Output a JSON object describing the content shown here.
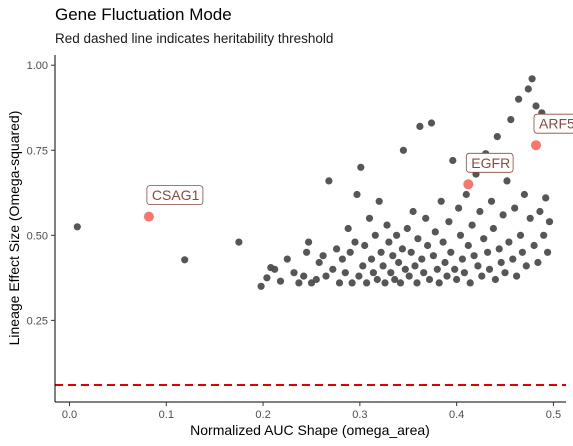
{
  "chart_data": {
    "type": "scatter",
    "title": "Gene Fluctuation Mode",
    "subtitle": "Red dashed line indicates heritability threshold",
    "xlabel": "Normalized AUC Shape (omega_area)",
    "ylabel": "Lineage Effect Size (Omega-squared)",
    "xlim": [
      -0.015,
      0.513
    ],
    "ylim": [
      0.01,
      1.03
    ],
    "x_ticks": [
      {
        "value": 0.0,
        "label": "0.0"
      },
      {
        "value": 0.1,
        "label": "0.1"
      },
      {
        "value": 0.2,
        "label": "0.2"
      },
      {
        "value": 0.3,
        "label": "0.3"
      },
      {
        "value": 0.4,
        "label": "0.4"
      },
      {
        "value": 0.5,
        "label": "0.5"
      }
    ],
    "y_ticks": [
      {
        "value": 0.25,
        "label": "0.25"
      },
      {
        "value": 0.5,
        "label": "0.50"
      },
      {
        "value": 0.75,
        "label": "0.75"
      },
      {
        "value": 1.0,
        "label": "1.00"
      }
    ],
    "threshold_y": 0.06,
    "grid": false,
    "colors": {
      "points": "#4d4d4d",
      "highlight": "#f8766d",
      "threshold": "#e00000",
      "label_text": "#8b4a3a",
      "label_border": "#8b4a3a"
    },
    "highlighted": [
      {
        "gene": "CSAG1",
        "x": 0.082,
        "y": 0.555
      },
      {
        "gene": "EGFR",
        "x": 0.412,
        "y": 0.65
      },
      {
        "gene": "ARF5",
        "x": 0.482,
        "y": 0.765
      }
    ],
    "points": [
      [
        0.008,
        0.525
      ],
      [
        0.119,
        0.428
      ],
      [
        0.175,
        0.48
      ],
      [
        0.198,
        0.35
      ],
      [
        0.204,
        0.375
      ],
      [
        0.208,
        0.405
      ],
      [
        0.212,
        0.4
      ],
      [
        0.218,
        0.365
      ],
      [
        0.225,
        0.43
      ],
      [
        0.232,
        0.39
      ],
      [
        0.237,
        0.36
      ],
      [
        0.242,
        0.38
      ],
      [
        0.245,
        0.45
      ],
      [
        0.247,
        0.48
      ],
      [
        0.25,
        0.36
      ],
      [
        0.255,
        0.37
      ],
      [
        0.258,
        0.42
      ],
      [
        0.262,
        0.44
      ],
      [
        0.265,
        0.38
      ],
      [
        0.268,
        0.66
      ],
      [
        0.272,
        0.4
      ],
      [
        0.276,
        0.46
      ],
      [
        0.279,
        0.36
      ],
      [
        0.282,
        0.43
      ],
      [
        0.285,
        0.39
      ],
      [
        0.288,
        0.52
      ],
      [
        0.29,
        0.45
      ],
      [
        0.292,
        0.36
      ],
      [
        0.295,
        0.48
      ],
      [
        0.297,
        0.62
      ],
      [
        0.299,
        0.38
      ],
      [
        0.301,
        0.7
      ],
      [
        0.303,
        0.41
      ],
      [
        0.305,
        0.47
      ],
      [
        0.307,
        0.36
      ],
      [
        0.31,
        0.55
      ],
      [
        0.312,
        0.43
      ],
      [
        0.314,
        0.39
      ],
      [
        0.316,
        0.5
      ],
      [
        0.318,
        0.37
      ],
      [
        0.32,
        0.6
      ],
      [
        0.322,
        0.45
      ],
      [
        0.324,
        0.41
      ],
      [
        0.326,
        0.36
      ],
      [
        0.328,
        0.53
      ],
      [
        0.33,
        0.48
      ],
      [
        0.332,
        0.39
      ],
      [
        0.334,
        0.44
      ],
      [
        0.336,
        0.37
      ],
      [
        0.338,
        0.5
      ],
      [
        0.34,
        0.42
      ],
      [
        0.342,
        0.36
      ],
      [
        0.344,
        0.46
      ],
      [
        0.345,
        0.75
      ],
      [
        0.347,
        0.4
      ],
      [
        0.349,
        0.52
      ],
      [
        0.351,
        0.38
      ],
      [
        0.353,
        0.45
      ],
      [
        0.355,
        0.57
      ],
      [
        0.357,
        0.41
      ],
      [
        0.359,
        0.36
      ],
      [
        0.36,
        0.49
      ],
      [
        0.362,
        0.82
      ],
      [
        0.364,
        0.43
      ],
      [
        0.366,
        0.39
      ],
      [
        0.368,
        0.55
      ],
      [
        0.37,
        0.47
      ],
      [
        0.372,
        0.37
      ],
      [
        0.374,
        0.83
      ],
      [
        0.376,
        0.44
      ],
      [
        0.378,
        0.51
      ],
      [
        0.38,
        0.4
      ],
      [
        0.382,
        0.36
      ],
      [
        0.384,
        0.6
      ],
      [
        0.386,
        0.48
      ],
      [
        0.388,
        0.42
      ],
      [
        0.39,
        0.38
      ],
      [
        0.392,
        0.54
      ],
      [
        0.394,
        0.45
      ],
      [
        0.396,
        0.72
      ],
      [
        0.398,
        0.4
      ],
      [
        0.4,
        0.37
      ],
      [
        0.402,
        0.58
      ],
      [
        0.404,
        0.5
      ],
      [
        0.406,
        0.43
      ],
      [
        0.408,
        0.39
      ],
      [
        0.41,
        0.62
      ],
      [
        0.412,
        0.47
      ],
      [
        0.414,
        0.36
      ],
      [
        0.416,
        0.53
      ],
      [
        0.418,
        0.44
      ],
      [
        0.42,
        0.68
      ],
      [
        0.422,
        0.41
      ],
      [
        0.424,
        0.57
      ],
      [
        0.426,
        0.38
      ],
      [
        0.428,
        0.49
      ],
      [
        0.43,
        0.74
      ],
      [
        0.432,
        0.45
      ],
      [
        0.434,
        0.4
      ],
      [
        0.436,
        0.6
      ],
      [
        0.438,
        0.52
      ],
      [
        0.44,
        0.37
      ],
      [
        0.442,
        0.79
      ],
      [
        0.444,
        0.46
      ],
      [
        0.446,
        0.42
      ],
      [
        0.448,
        0.56
      ],
      [
        0.45,
        0.39
      ],
      [
        0.452,
        0.66
      ],
      [
        0.454,
        0.48
      ],
      [
        0.456,
        0.84
      ],
      [
        0.458,
        0.43
      ],
      [
        0.46,
        0.58
      ],
      [
        0.462,
        0.38
      ],
      [
        0.464,
        0.9
      ],
      [
        0.466,
        0.5
      ],
      [
        0.468,
        0.45
      ],
      [
        0.47,
        0.62
      ],
      [
        0.472,
        0.41
      ],
      [
        0.474,
        0.93
      ],
      [
        0.476,
        0.55
      ],
      [
        0.478,
        0.96
      ],
      [
        0.48,
        0.47
      ],
      [
        0.482,
        0.88
      ],
      [
        0.484,
        0.42
      ],
      [
        0.486,
        0.57
      ],
      [
        0.488,
        0.86
      ],
      [
        0.49,
        0.5
      ],
      [
        0.492,
        0.61
      ],
      [
        0.494,
        0.45
      ],
      [
        0.496,
        0.54
      ]
    ]
  }
}
